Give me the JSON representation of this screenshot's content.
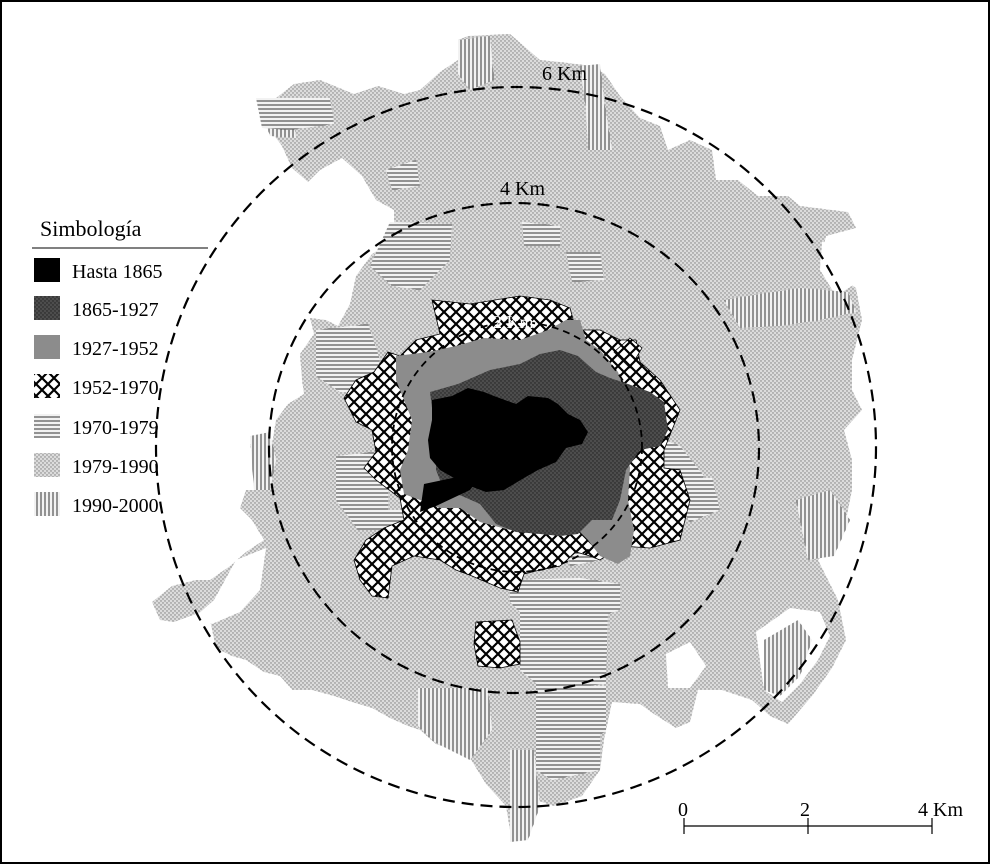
{
  "map": {
    "rings": [
      "2 Km",
      "4 Km",
      "6 Km"
    ],
    "legend": {
      "title": "Simbología",
      "items": [
        {
          "label": "Hasta 1865",
          "pattern": "solid-black"
        },
        {
          "label": "1865-1927",
          "pattern": "dark-dots"
        },
        {
          "label": "1927-1952",
          "pattern": "medium-gray"
        },
        {
          "label": "1952-1970",
          "pattern": "crosshatch"
        },
        {
          "label": "1970-1979",
          "pattern": "horizontal-lines"
        },
        {
          "label": "1979-1990",
          "pattern": "light-dots"
        },
        {
          "label": "1990-2000",
          "pattern": "vertical-lines"
        }
      ]
    },
    "scale_bar": {
      "ticks": [
        "0",
        "2",
        "4 Km"
      ]
    },
    "colors": {
      "border": "#000000",
      "fill_light": "#cfcfcf",
      "fill_medium": "#8c8c8c",
      "fill_dark": "#4a4a4a",
      "fill_black": "#000000"
    }
  }
}
